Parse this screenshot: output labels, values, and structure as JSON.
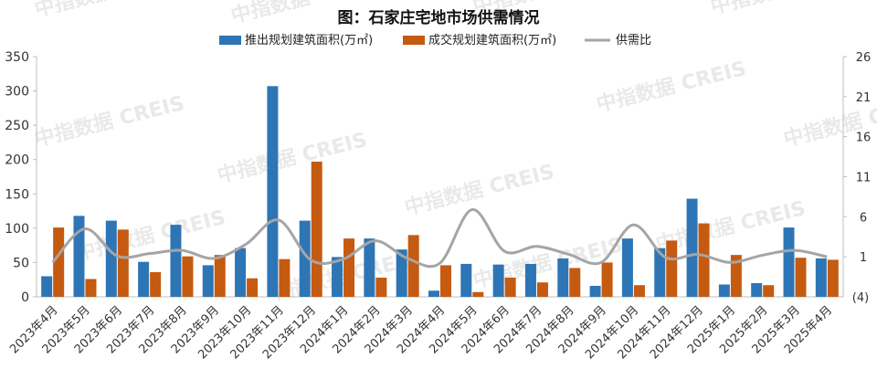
{
  "chart_data": {
    "type": "bar",
    "title": "图：石家庄宅地市场供需情况",
    "categories": [
      "2023年4月",
      "2023年5月",
      "2023年6月",
      "2023年7月",
      "2023年8月",
      "2023年9月",
      "2023年10月",
      "2023年11月",
      "2023年12月",
      "2024年1月",
      "2024年2月",
      "2024年3月",
      "2024年4月",
      "2024年5月",
      "2024年6月",
      "2024年7月",
      "2024年8月",
      "2024年9月",
      "2024年10月",
      "2024年11月",
      "2024年12月",
      "2025年1月",
      "2025年2月",
      "2025年3月",
      "2025年4月"
    ],
    "series": [
      {
        "name": "推出规划建筑面积(万㎡)",
        "type": "bar",
        "axis": "left",
        "color": "#2e75b6",
        "values": [
          30,
          118,
          111,
          51,
          105,
          46,
          71,
          307,
          111,
          58,
          85,
          69,
          9,
          48,
          47,
          48,
          56,
          16,
          85,
          71,
          143,
          18,
          20,
          101,
          56
        ]
      },
      {
        "name": "成交规划建筑面积(万㎡)",
        "type": "bar",
        "axis": "left",
        "color": "#c55a11",
        "values": [
          101,
          26,
          98,
          36,
          59,
          61,
          27,
          55,
          197,
          85,
          28,
          90,
          46,
          7,
          28,
          21,
          42,
          50,
          17,
          82,
          107,
          61,
          17,
          57,
          54
        ]
      },
      {
        "name": "供需比",
        "type": "line",
        "axis": "right",
        "color": "#a5a5a5",
        "values": [
          0.3,
          4.5,
          1.1,
          1.4,
          1.8,
          0.8,
          2.6,
          5.6,
          0.6,
          0.7,
          3.0,
          0.8,
          0.2,
          6.9,
          1.7,
          2.3,
          1.3,
          0.3,
          5.0,
          0.9,
          1.3,
          0.3,
          1.2,
          1.8,
          1.0
        ]
      }
    ],
    "left_axis": {
      "ylim": [
        0,
        350
      ],
      "ticks": [
        0,
        50,
        100,
        150,
        200,
        250,
        300,
        350
      ]
    },
    "right_axis": {
      "ylim": [
        -4,
        26
      ],
      "ticks": [
        1,
        6,
        11,
        16,
        21,
        26
      ],
      "tick_labels": [
        "1",
        "6",
        "11",
        "16",
        "21",
        "26"
      ],
      "negative_label": "(4)",
      "negative_color": "#ff0000"
    },
    "legend_position": "top-center",
    "watermark": "中指数据 CREIS"
  }
}
